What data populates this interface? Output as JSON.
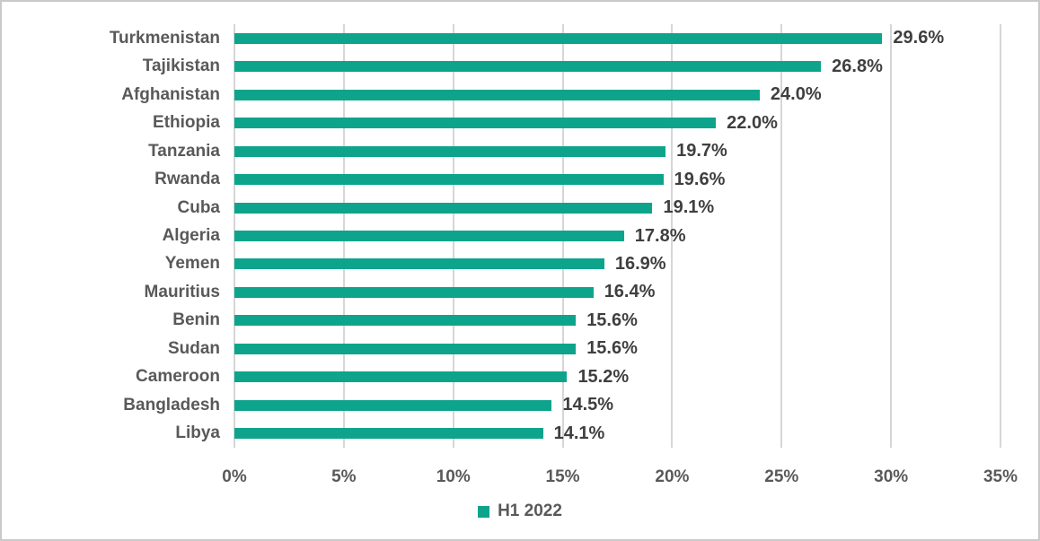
{
  "chart_data": {
    "type": "bar",
    "orientation": "horizontal",
    "title": "",
    "xlabel": "",
    "ylabel": "",
    "categories": [
      "Turkmenistan",
      "Tajikistan",
      "Afghanistan",
      "Ethiopia",
      "Tanzania",
      "Rwanda",
      "Cuba",
      "Algeria",
      "Yemen",
      "Mauritius",
      "Benin",
      "Sudan",
      "Cameroon",
      "Bangladesh",
      "Libya"
    ],
    "series": [
      {
        "name": "H1 2022",
        "values": [
          29.6,
          26.8,
          24.0,
          22.0,
          19.7,
          19.6,
          19.1,
          17.8,
          16.9,
          16.4,
          15.6,
          15.6,
          15.2,
          14.5,
          14.1
        ],
        "value_labels": [
          "29.6%",
          "26.8%",
          "24.0%",
          "22.0%",
          "19.7%",
          "19.6%",
          "19.1%",
          "17.8%",
          "16.9%",
          "16.4%",
          "15.6%",
          "15.6%",
          "15.2%",
          "14.5%",
          "14.1%"
        ]
      }
    ],
    "x_ticks": [
      "0%",
      "5%",
      "10%",
      "15%",
      "20%",
      "25%",
      "30%",
      "35%"
    ],
    "xlim": [
      0,
      35
    ],
    "grid": true,
    "legend_position": "bottom"
  },
  "colors": {
    "bar": "#0ea48c",
    "category_label": "#595959",
    "value_label": "#3f3f3f",
    "tick_label": "#595959",
    "gridline": "#d6d6d6",
    "border": "#c9c9c9",
    "background": "#ffffff"
  }
}
